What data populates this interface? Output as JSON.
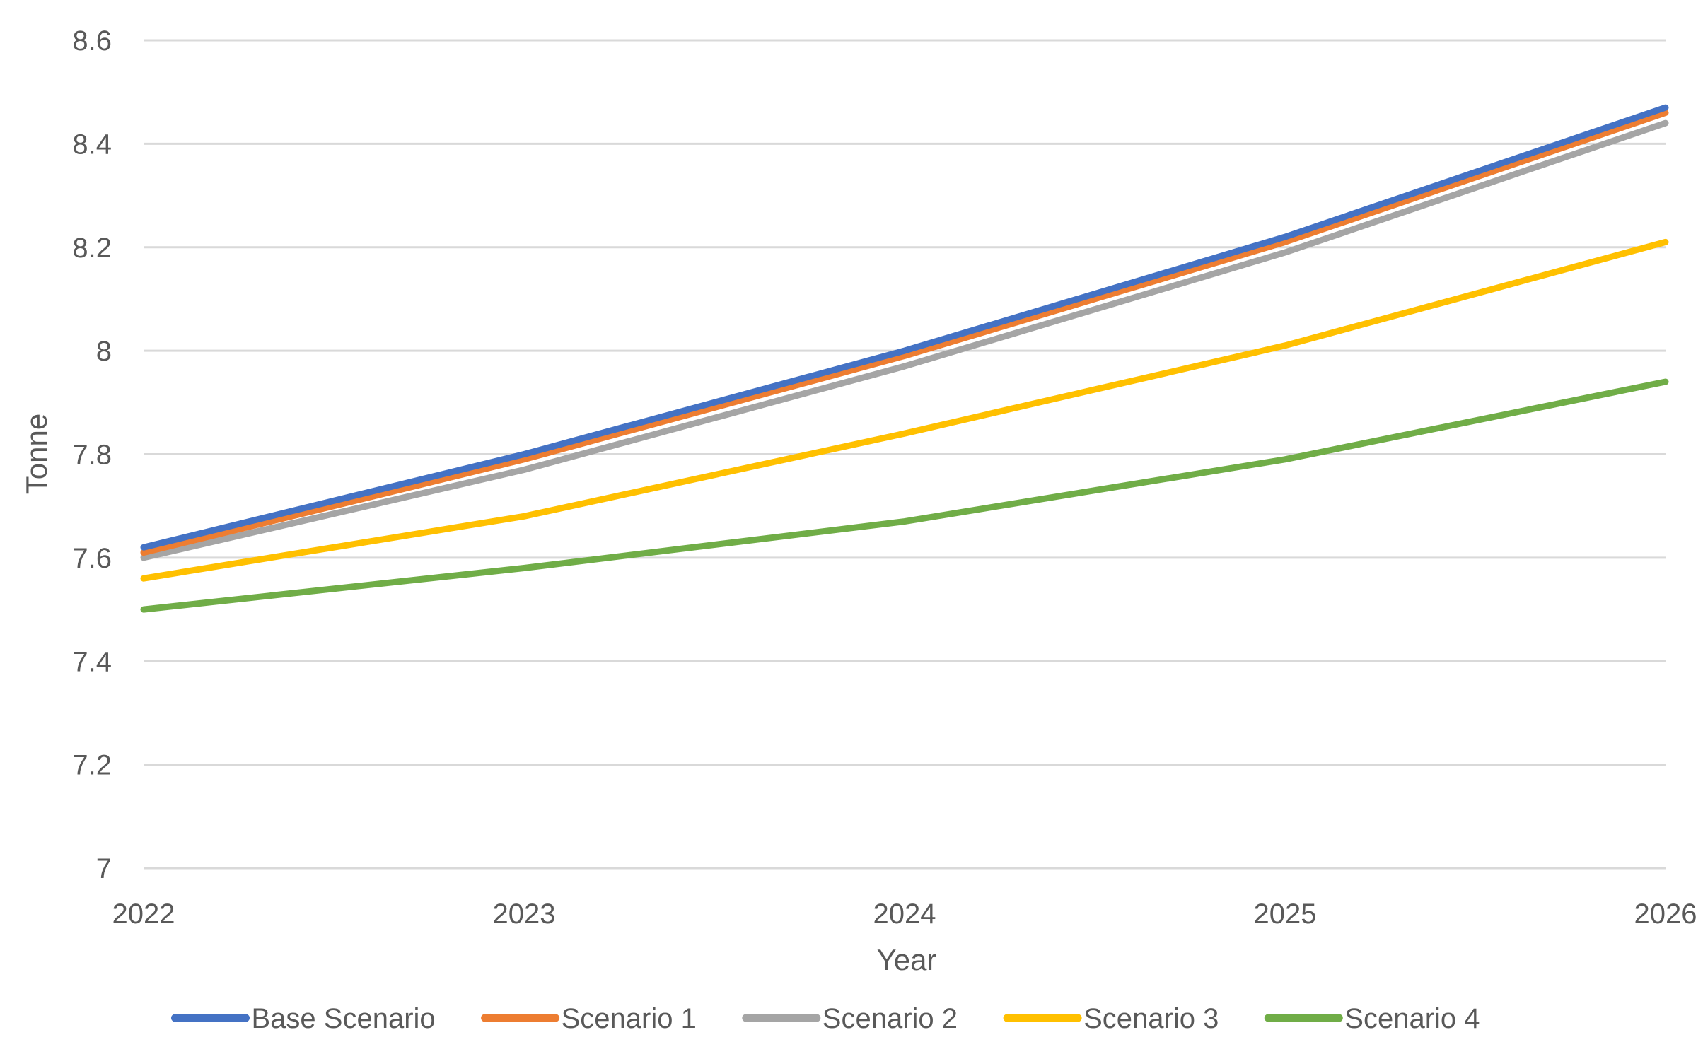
{
  "chart_data": {
    "type": "line",
    "title": "",
    "xlabel": "Year",
    "ylabel": "Tonne",
    "x": [
      "2022",
      "2023",
      "2024",
      "2025",
      "2026"
    ],
    "ylim": [
      7,
      8.6
    ],
    "yticks": [
      "7",
      "7.2",
      "7.4",
      "7.6",
      "7.8",
      "8",
      "8.2",
      "8.4",
      "8.6"
    ],
    "grid": true,
    "legend_position": "bottom",
    "series": [
      {
        "name": "Base Scenario",
        "color": "#4472c4",
        "values": [
          7.62,
          7.8,
          8.0,
          8.22,
          8.47
        ]
      },
      {
        "name": "Scenario 1",
        "color": "#ed7d31",
        "values": [
          7.61,
          7.79,
          7.99,
          8.21,
          8.46
        ]
      },
      {
        "name": "Scenario 2",
        "color": "#a5a5a5",
        "values": [
          7.6,
          7.77,
          7.97,
          8.19,
          8.44
        ]
      },
      {
        "name": "Scenario 3",
        "color": "#ffc000",
        "values": [
          7.56,
          7.68,
          7.84,
          8.01,
          8.21
        ]
      },
      {
        "name": "Scenario 4",
        "color": "#70ad47",
        "values": [
          7.5,
          7.58,
          7.67,
          7.79,
          7.94
        ]
      }
    ]
  }
}
